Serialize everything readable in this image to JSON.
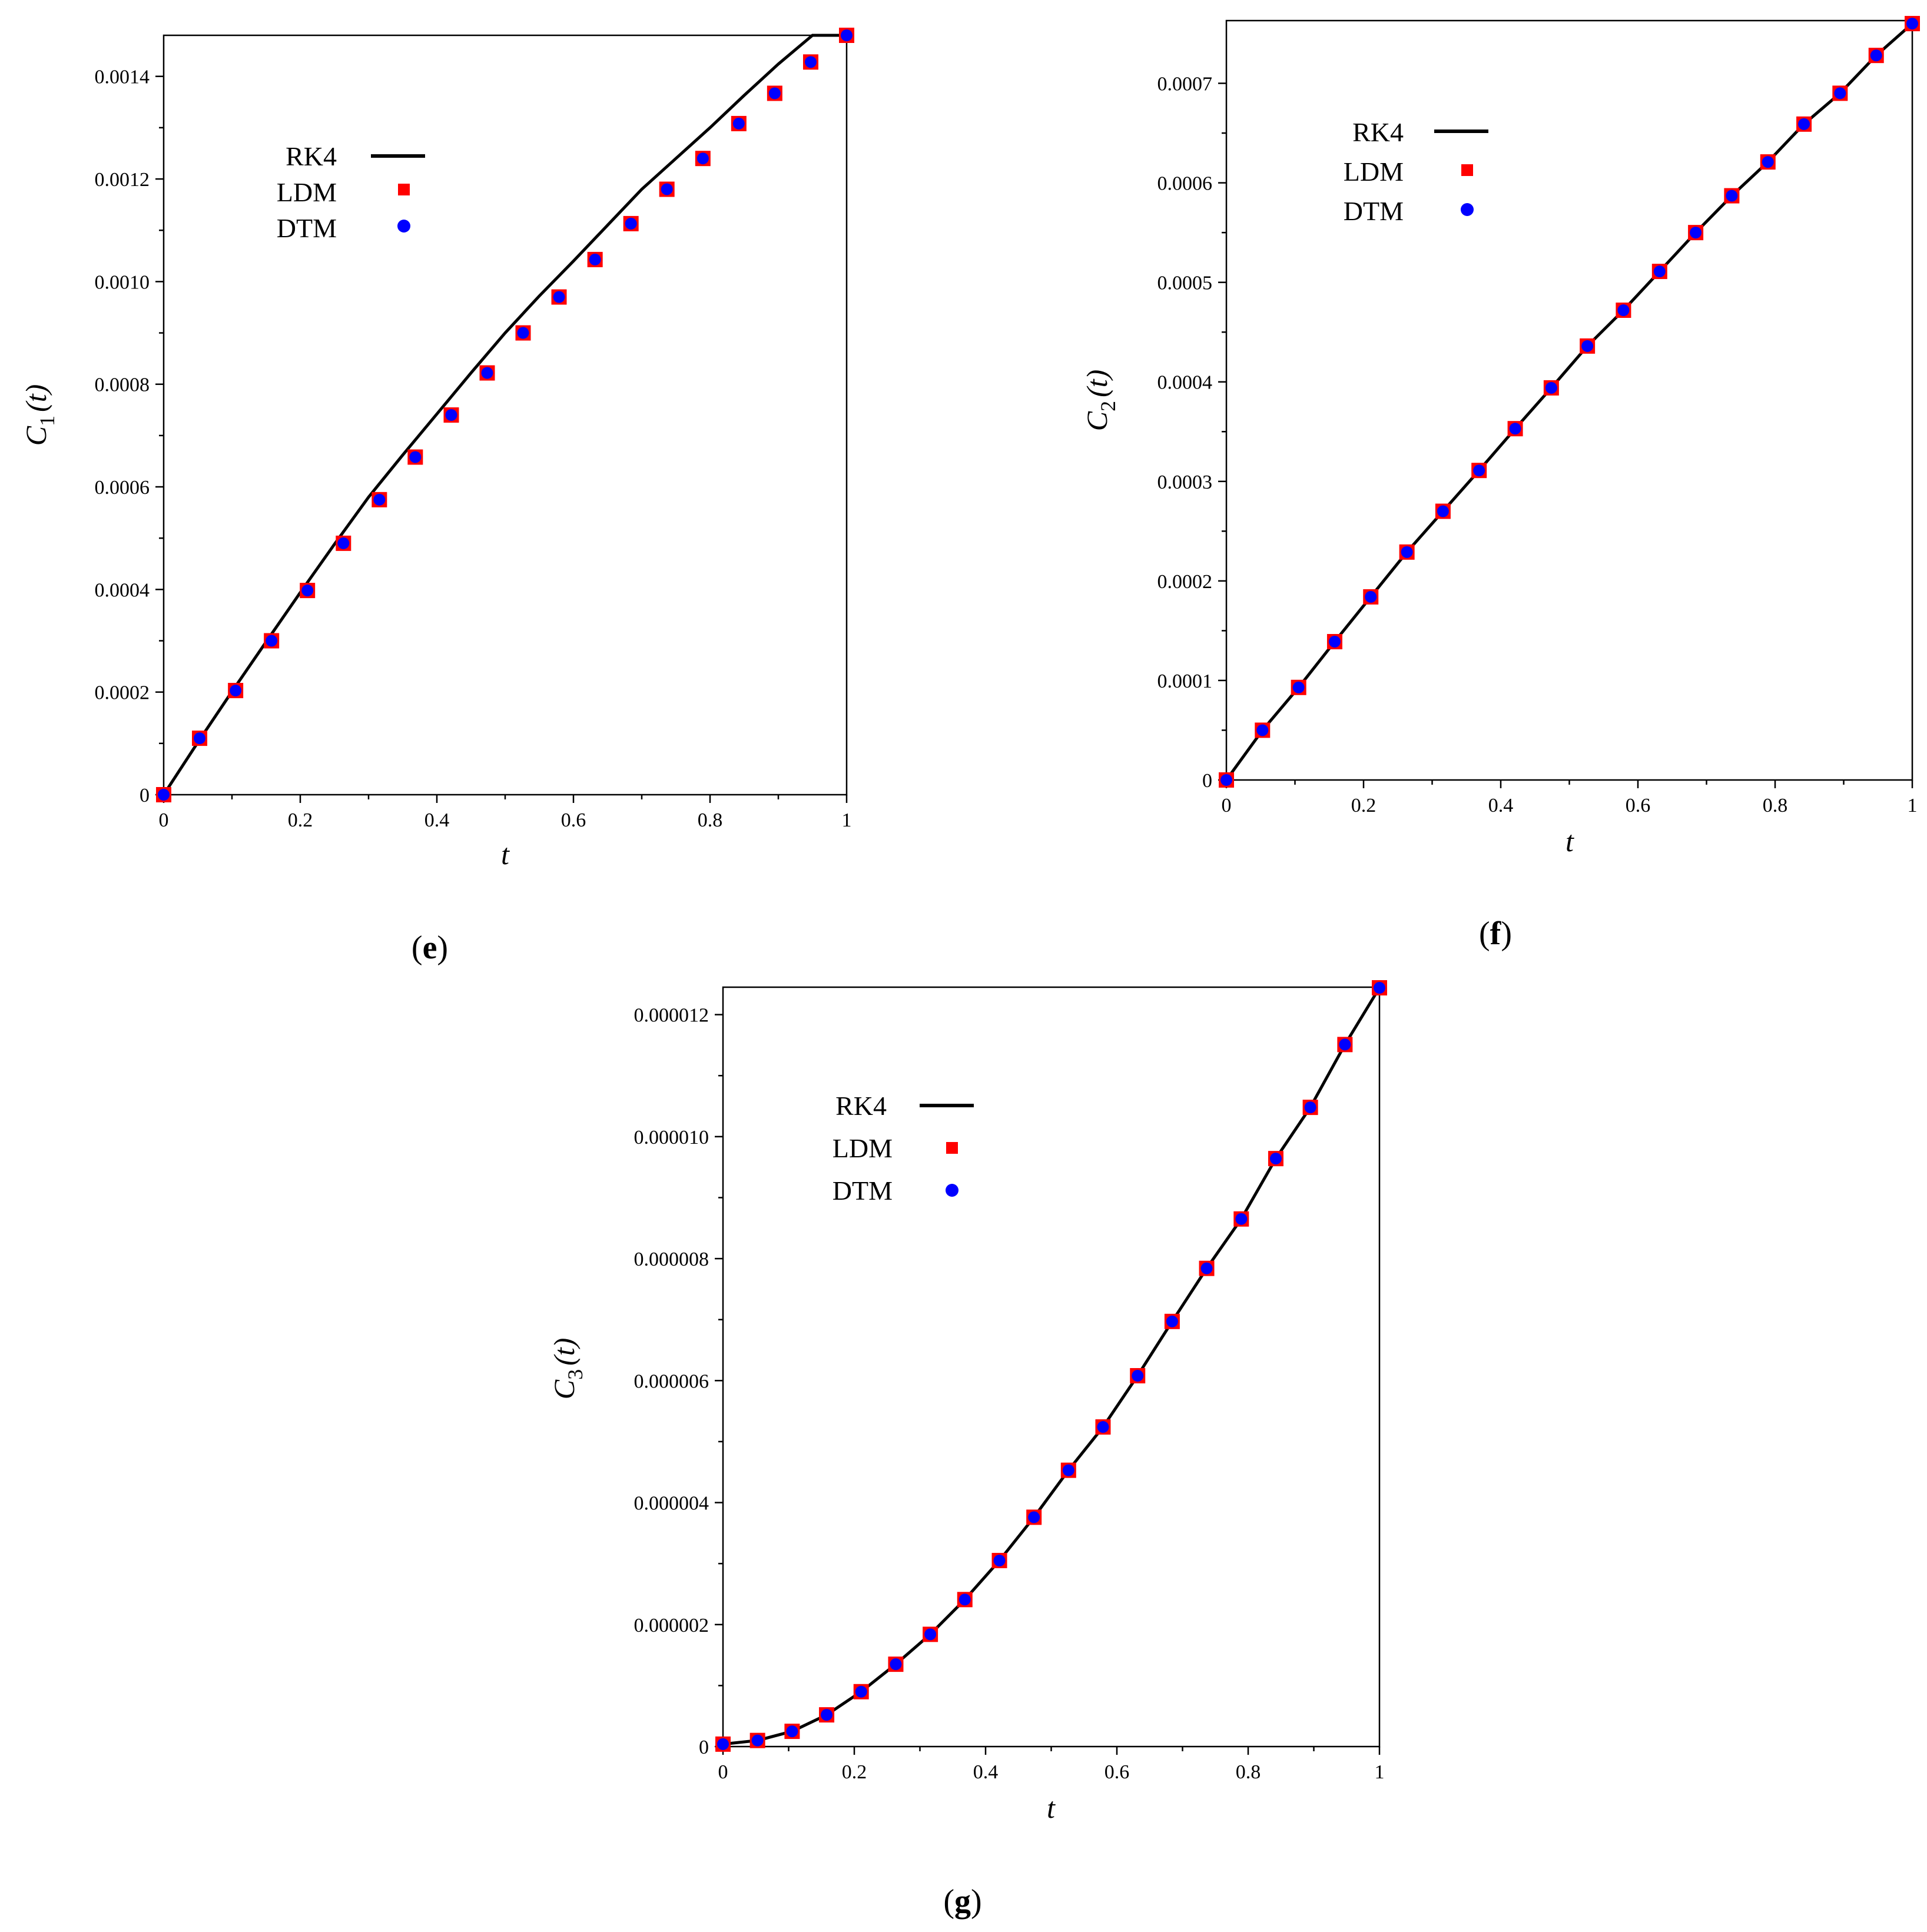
{
  "colors": {
    "rk4": "#000000",
    "ldm": "#ff0000",
    "dtm": "#0000ff"
  },
  "chart_data": [
    {
      "type": "line",
      "panel_label": "e",
      "ylabel_main": "C",
      "ylabel_sub": "1",
      "ylabel_arg": "(t)",
      "xlabel": "t",
      "xlim": [
        0,
        1
      ],
      "ylim": [
        0,
        0.00148
      ],
      "x_ticks": [
        "0",
        "0.2",
        "0.4",
        "0.6",
        "0.8",
        "1"
      ],
      "y_ticks": [
        "0",
        "0.0002",
        "0.0004",
        "0.0006",
        "0.0008",
        "0.0010",
        "0.0012",
        "0.0014"
      ],
      "legend": [
        "RK4",
        "LDM",
        "DTM"
      ],
      "legend_position": "upper-left",
      "series": [
        {
          "name": "RK4",
          "marker": "line",
          "x": [
            0,
            0.05,
            0.1,
            0.15,
            0.2,
            0.25,
            0.3,
            0.35,
            0.4,
            0.45,
            0.5,
            0.55,
            0.6,
            0.65,
            0.7,
            0.75,
            0.8,
            0.85,
            0.9,
            0.95,
            1.0
          ],
          "y": [
            0,
            0.000102,
            0.000201,
            0.000298,
            0.000394,
            0.000488,
            0.00058,
            0.000662,
            0.000742,
            0.000822,
            0.0009,
            0.000972,
            0.00104,
            0.00111,
            0.00118,
            0.00124,
            0.0013,
            0.001363,
            0.001424,
            0.00148,
            0.00148
          ]
        },
        {
          "name": "LDM",
          "marker": "square",
          "x": [
            0,
            0.0526,
            0.1053,
            0.1579,
            0.2105,
            0.2632,
            0.3158,
            0.3684,
            0.4211,
            0.4737,
            0.5263,
            0.5789,
            0.6316,
            0.6842,
            0.7368,
            0.7895,
            0.8421,
            0.8947,
            0.9474,
            1.0
          ],
          "y": [
            0,
            0.00011,
            0.000203,
            0.0003,
            0.000398,
            0.00049,
            0.000575,
            0.000658,
            0.00074,
            0.000822,
            0.0009,
            0.00097,
            0.001043,
            0.001113,
            0.00118,
            0.00124,
            0.001308,
            0.001367,
            0.001428,
            0.00148
          ]
        },
        {
          "name": "DTM",
          "marker": "circle",
          "x": [
            0,
            0.0526,
            0.1053,
            0.1579,
            0.2105,
            0.2632,
            0.3158,
            0.3684,
            0.4211,
            0.4737,
            0.5263,
            0.5789,
            0.6316,
            0.6842,
            0.7368,
            0.7895,
            0.8421,
            0.8947,
            0.9474,
            1.0
          ],
          "y": [
            0,
            0.00011,
            0.000203,
            0.0003,
            0.000398,
            0.00049,
            0.000575,
            0.000658,
            0.00074,
            0.000822,
            0.0009,
            0.00097,
            0.001043,
            0.001113,
            0.00118,
            0.00124,
            0.001308,
            0.001367,
            0.001428,
            0.00148
          ]
        }
      ]
    },
    {
      "type": "line",
      "panel_label": "f",
      "ylabel_main": "C",
      "ylabel_sub": "2",
      "ylabel_arg": "(t)",
      "xlabel": "t",
      "xlim": [
        0,
        1
      ],
      "ylim": [
        0,
        0.000763
      ],
      "x_ticks": [
        "0",
        "0.2",
        "0.4",
        "0.6",
        "0.8",
        "1"
      ],
      "y_ticks": [
        "0",
        "0.0001",
        "0.0002",
        "0.0003",
        "0.0004",
        "0.0005",
        "0.0006",
        "0.0007"
      ],
      "legend": [
        "RK4",
        "LDM",
        "DTM"
      ],
      "legend_position": "upper-left",
      "series": [
        {
          "name": "RK4",
          "marker": "line",
          "x": [
            0,
            0.0526,
            0.1053,
            0.1579,
            0.2105,
            0.2632,
            0.3158,
            0.3684,
            0.4211,
            0.4737,
            0.5263,
            0.5789,
            0.6316,
            0.6842,
            0.7368,
            0.7895,
            0.8421,
            0.8947,
            0.9474,
            1.0
          ],
          "y": [
            0,
            5e-05,
            9.3e-05,
            0.000139,
            0.000184,
            0.000229,
            0.00027,
            0.000311,
            0.000353,
            0.000394,
            0.000436,
            0.000472,
            0.000511,
            0.00055,
            0.000587,
            0.000621,
            0.000659,
            0.00069,
            0.000728,
            0.00076
          ]
        },
        {
          "name": "LDM",
          "marker": "square",
          "x": [
            0,
            0.0526,
            0.1053,
            0.1579,
            0.2105,
            0.2632,
            0.3158,
            0.3684,
            0.4211,
            0.4737,
            0.5263,
            0.5789,
            0.6316,
            0.6842,
            0.7368,
            0.7895,
            0.8421,
            0.8947,
            0.9474,
            1.0
          ],
          "y": [
            0,
            5e-05,
            9.3e-05,
            0.000139,
            0.000184,
            0.000229,
            0.00027,
            0.000311,
            0.000353,
            0.000394,
            0.000436,
            0.000472,
            0.000511,
            0.00055,
            0.000587,
            0.000621,
            0.000659,
            0.00069,
            0.000728,
            0.00076
          ]
        },
        {
          "name": "DTM",
          "marker": "circle",
          "x": [
            0,
            0.0526,
            0.1053,
            0.1579,
            0.2105,
            0.2632,
            0.3158,
            0.3684,
            0.4211,
            0.4737,
            0.5263,
            0.5789,
            0.6316,
            0.6842,
            0.7368,
            0.7895,
            0.8421,
            0.8947,
            0.9474,
            1.0
          ],
          "y": [
            0,
            5e-05,
            9.3e-05,
            0.000139,
            0.000184,
            0.000229,
            0.00027,
            0.000311,
            0.000353,
            0.000394,
            0.000436,
            0.000472,
            0.000511,
            0.00055,
            0.000587,
            0.000621,
            0.000659,
            0.00069,
            0.000728,
            0.00076
          ]
        }
      ]
    },
    {
      "type": "line",
      "panel_label": "g",
      "ylabel_main": "C",
      "ylabel_sub": "3",
      "ylabel_arg": "(t)",
      "xlabel": "t",
      "xlim": [
        0,
        1
      ],
      "ylim": [
        0,
        1.245e-05
      ],
      "x_ticks": [
        "0",
        "0.2",
        "0.4",
        "0.6",
        "0.8",
        "1"
      ],
      "y_ticks": [
        "0",
        "0.000002",
        "0.000004",
        "0.000006",
        "0.000008",
        "0.000010",
        "0.000012"
      ],
      "legend": [
        "RK4",
        "LDM",
        "DTM"
      ],
      "legend_position": "upper-left",
      "series": [
        {
          "name": "RK4",
          "marker": "line",
          "x": [
            0,
            0.0526,
            0.1053,
            0.1579,
            0.2105,
            0.2632,
            0.3158,
            0.3684,
            0.4211,
            0.4737,
            0.5263,
            0.5789,
            0.6316,
            0.6842,
            0.7368,
            0.7895,
            0.8421,
            0.8947,
            0.9474,
            1.0
          ],
          "y": [
            4e-08,
            1e-07,
            2.5e-07,
            5.2e-07,
            9e-07,
            1.35e-06,
            1.84e-06,
            2.41e-06,
            3.05e-06,
            3.76e-06,
            4.53e-06,
            5.24e-06,
            6.08e-06,
            6.97e-06,
            7.84e-06,
            8.65e-06,
            9.64e-06,
            1.048e-05,
            1.151e-05,
            1.244e-05
          ]
        },
        {
          "name": "LDM",
          "marker": "square",
          "x": [
            0,
            0.0526,
            0.1053,
            0.1579,
            0.2105,
            0.2632,
            0.3158,
            0.3684,
            0.4211,
            0.4737,
            0.5263,
            0.5789,
            0.6316,
            0.6842,
            0.7368,
            0.7895,
            0.8421,
            0.8947,
            0.9474,
            1.0
          ],
          "y": [
            4e-08,
            1e-07,
            2.5e-07,
            5.2e-07,
            9e-07,
            1.35e-06,
            1.84e-06,
            2.41e-06,
            3.05e-06,
            3.76e-06,
            4.53e-06,
            5.24e-06,
            6.08e-06,
            6.97e-06,
            7.84e-06,
            8.65e-06,
            9.64e-06,
            1.048e-05,
            1.151e-05,
            1.244e-05
          ]
        },
        {
          "name": "DTM",
          "marker": "circle",
          "x": [
            0,
            0.0526,
            0.1053,
            0.1579,
            0.2105,
            0.2632,
            0.3158,
            0.3684,
            0.4211,
            0.4737,
            0.5263,
            0.5789,
            0.6316,
            0.6842,
            0.7368,
            0.7895,
            0.8421,
            0.8947,
            0.9474,
            1.0
          ],
          "y": [
            4e-08,
            1e-07,
            2.5e-07,
            5.2e-07,
            9e-07,
            1.35e-06,
            1.84e-06,
            2.41e-06,
            3.05e-06,
            3.76e-06,
            4.53e-06,
            5.24e-06,
            6.08e-06,
            6.97e-06,
            7.84e-06,
            8.65e-06,
            9.64e-06,
            1.048e-05,
            1.151e-05,
            1.244e-05
          ]
        }
      ]
    }
  ]
}
